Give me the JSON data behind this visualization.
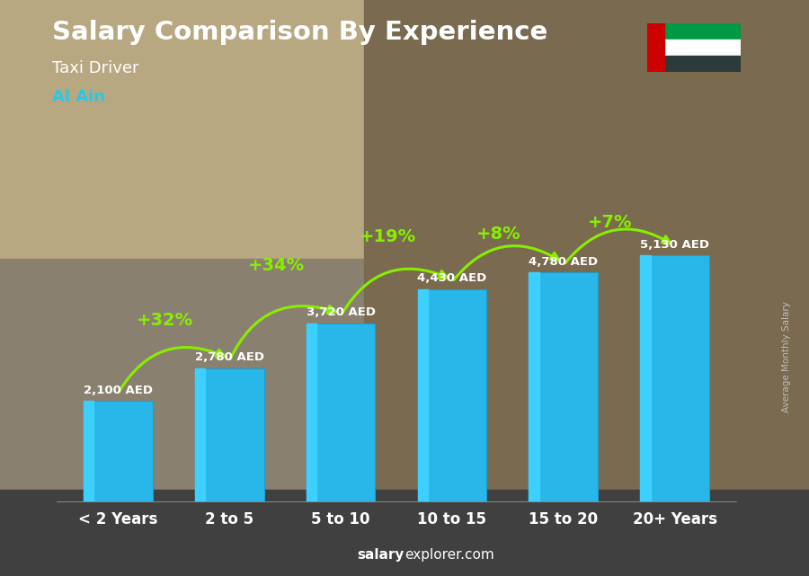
{
  "title": "Salary Comparison By Experience",
  "subtitle": "Taxi Driver",
  "city": "Al Ain",
  "categories": [
    "< 2 Years",
    "2 to 5",
    "5 to 10",
    "10 to 15",
    "15 to 20",
    "20+ Years"
  ],
  "values": [
    2100,
    2780,
    3720,
    4430,
    4780,
    5130
  ],
  "value_labels": [
    "2,100 AED",
    "2,780 AED",
    "3,720 AED",
    "4,430 AED",
    "4,780 AED",
    "5,130 AED"
  ],
  "pct_changes": [
    "+32%",
    "+34%",
    "+19%",
    "+8%",
    "+7%"
  ],
  "bar_color": "#29b6e8",
  "bar_highlight_color": "#3dd0ff",
  "pct_color": "#88ee00",
  "value_label_color": "#ffffff",
  "title_color": "#ffffff",
  "subtitle_color": "#ffffff",
  "city_color": "#29c8e8",
  "xlabel_color": "#ffffff",
  "bg_color": "#555550",
  "ylim": [
    0,
    6500
  ],
  "footer_bold": "salary",
  "footer_normal": "explorer.com",
  "side_label": "Average Monthly Salary"
}
